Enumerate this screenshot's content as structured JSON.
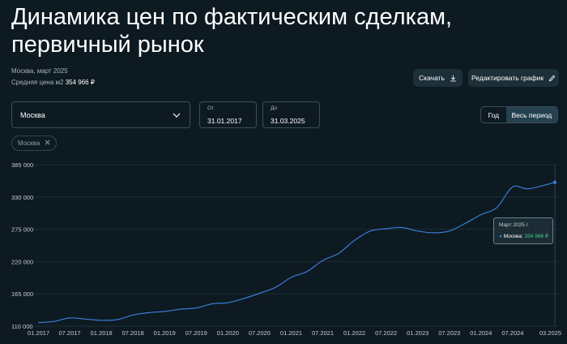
{
  "page": {
    "title": "Динамика цен по фактическим сделкам, первичный рынок",
    "subtitle_location_date": "Москва, март 2025",
    "avg_price_label": "Средняя цена м2",
    "avg_price_value": "354 966 ₽"
  },
  "toolbar": {
    "download_label": "Скачать",
    "edit_chart_label": "Редактировать график"
  },
  "filters": {
    "region_select_value": "Москва",
    "date_from_label": "От",
    "date_from_value": "31.01.2017",
    "date_to_label": "До",
    "date_to_value": "31.03.2025",
    "period_options": [
      "Год",
      "Весь период"
    ],
    "period_selected": "Весь период",
    "active_chip": "Москва"
  },
  "tooltip": {
    "title": "Март 2025 г.",
    "series_name": "Москва",
    "value": "354 966 ₽"
  },
  "colors": {
    "background": "#0d1a21",
    "line": "#3a7bd5",
    "tooltip_value": "#3ecf8e"
  },
  "chart_data": {
    "type": "line",
    "title": "",
    "xlabel": "",
    "ylabel": "",
    "ylim": [
      110000,
      385000
    ],
    "yticks": [
      110000,
      165000,
      220000,
      275000,
      330000,
      385000
    ],
    "ytick_labels": [
      "110 000",
      "165 000",
      "220 000",
      "275 000",
      "330 000",
      "385 000"
    ],
    "xtick_labels": [
      "01.2017",
      "07.2017",
      "01.2018",
      "07.2018",
      "01.2019",
      "07.2019",
      "01.2020",
      "07.2020",
      "01.2021",
      "07.2021",
      "01.2022",
      "07.2022",
      "01.2023",
      "07.2023",
      "01.2024",
      "07.2024",
      "03.2025"
    ],
    "grid": "horizontal",
    "series": [
      {
        "name": "Москва",
        "x": [
          "01.2017",
          "04.2017",
          "07.2017",
          "10.2017",
          "01.2018",
          "04.2018",
          "07.2018",
          "10.2018",
          "01.2019",
          "04.2019",
          "07.2019",
          "10.2019",
          "01.2020",
          "04.2020",
          "07.2020",
          "10.2020",
          "01.2021",
          "04.2021",
          "07.2021",
          "10.2021",
          "01.2022",
          "04.2022",
          "07.2022",
          "10.2022",
          "01.2023",
          "04.2023",
          "07.2023",
          "10.2023",
          "01.2024",
          "04.2024",
          "07.2024",
          "10.2024",
          "03.2025"
        ],
        "values": [
          116000,
          118000,
          124000,
          122000,
          120000,
          121000,
          129000,
          133000,
          135000,
          139000,
          141000,
          148000,
          150000,
          157000,
          166000,
          176000,
          193000,
          203000,
          222000,
          234000,
          256000,
          272000,
          276000,
          278000,
          272000,
          269000,
          272000,
          285000,
          300000,
          312000,
          347000,
          344000,
          354966
        ]
      }
    ]
  }
}
